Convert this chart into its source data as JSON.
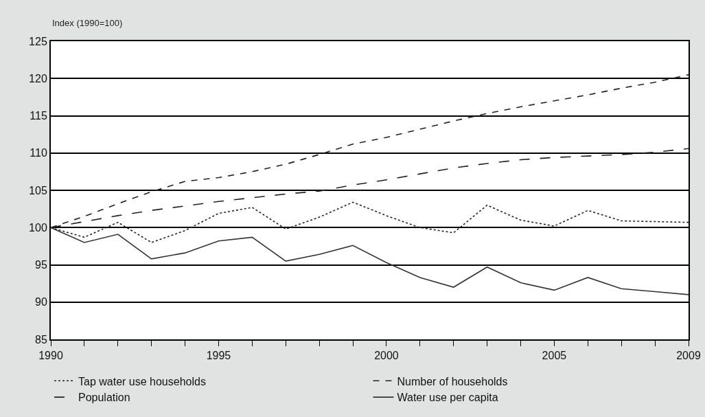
{
  "chart_data": {
    "type": "line",
    "ylabel": "Index (1990=100)",
    "x": [
      1990,
      1991,
      1992,
      1993,
      1994,
      1995,
      1996,
      1997,
      1998,
      1999,
      2000,
      2001,
      2002,
      2003,
      2004,
      2005,
      2006,
      2007,
      2008,
      2009
    ],
    "xlim": [
      1990,
      2009
    ],
    "xticks": [
      1990,
      {
        "value": 1991,
        "label": null
      },
      {
        "value": 1992,
        "label": null
      },
      {
        "value": 1993,
        "label": null
      },
      {
        "value": 1994,
        "label": null
      },
      1995,
      {
        "value": 1996,
        "label": null
      },
      {
        "value": 1997,
        "label": null
      },
      {
        "value": 1998,
        "label": null
      },
      {
        "value": 1999,
        "label": null
      },
      2000,
      {
        "value": 2001,
        "label": null
      },
      {
        "value": 2002,
        "label": null
      },
      {
        "value": 2003,
        "label": null
      },
      {
        "value": 2004,
        "label": null
      },
      2005,
      {
        "value": 2006,
        "label": null
      },
      {
        "value": 2007,
        "label": null
      },
      {
        "value": 2008,
        "label": null
      },
      2009
    ],
    "ylim": [
      85,
      125
    ],
    "yticks": [
      85,
      90,
      95,
      100,
      105,
      110,
      115,
      120,
      125
    ],
    "grid": "y",
    "legend": "bottom",
    "marker": "none",
    "series": [
      {
        "name": "Tap water use households",
        "color": "#222222",
        "line_style": "dotted",
        "values": [
          100,
          98.7,
          100.7,
          98,
          99.6,
          101.9,
          102.7,
          99.8,
          101.4,
          103.4,
          101.6,
          100,
          99.3,
          103,
          101,
          100.2,
          102.3,
          100.9,
          100.8,
          100.7
        ]
      },
      {
        "name": "Number of households",
        "color": "#222222",
        "line_style": "dashed",
        "values": [
          100,
          101.5,
          103.2,
          104.8,
          106.2,
          106.7,
          107.5,
          108.5,
          109.8,
          111.2,
          112.1,
          113.2,
          114.3,
          115.3,
          116.2,
          117,
          117.8,
          118.7,
          119.5,
          120.5
        ]
      },
      {
        "name": "Population",
        "color": "#222222",
        "line_style": "longdash",
        "values": [
          100,
          100.8,
          101.6,
          102.3,
          102.9,
          103.5,
          104,
          104.5,
          104.9,
          105.7,
          106.4,
          107.2,
          108,
          108.6,
          109.1,
          109.4,
          109.6,
          109.8,
          110.1,
          110.6
        ]
      },
      {
        "name": "Water use per capita",
        "color": "#333333",
        "line_style": "solid",
        "values": [
          100,
          98,
          99.1,
          95.8,
          96.6,
          98.2,
          98.7,
          95.5,
          96.4,
          97.6,
          95.3,
          93.3,
          92,
          94.7,
          92.6,
          91.6,
          93.3,
          91.8,
          91.4,
          91
        ]
      }
    ]
  }
}
